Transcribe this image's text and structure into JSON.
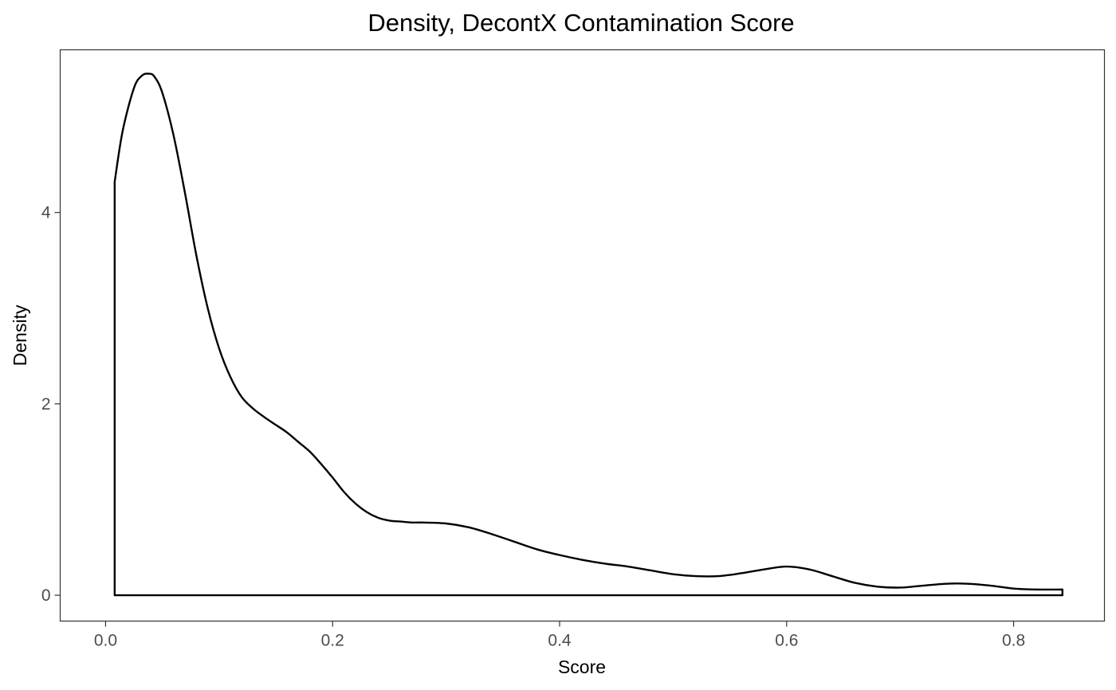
{
  "chart_data": {
    "type": "area",
    "title": "Density, DecontX Contamination Score",
    "xlabel": "Score",
    "ylabel": "Density",
    "xlim": [
      -0.04,
      0.88
    ],
    "ylim": [
      -0.27,
      5.7
    ],
    "x_ticks": [
      0.0,
      0.2,
      0.4,
      0.6,
      0.8
    ],
    "x_tick_labels": [
      "0.0",
      "0.2",
      "0.4",
      "0.6",
      "0.8"
    ],
    "y_ticks": [
      0,
      2,
      4
    ],
    "y_tick_labels": [
      "0",
      "2",
      "4"
    ],
    "grid": false,
    "series": [
      {
        "x": [
          0.008,
          0.015,
          0.025,
          0.032,
          0.038,
          0.043,
          0.05,
          0.06,
          0.07,
          0.08,
          0.09,
          0.1,
          0.11,
          0.12,
          0.13,
          0.14,
          0.15,
          0.16,
          0.17,
          0.18,
          0.19,
          0.2,
          0.21,
          0.22,
          0.23,
          0.24,
          0.25,
          0.26,
          0.27,
          0.28,
          0.3,
          0.32,
          0.34,
          0.36,
          0.38,
          0.4,
          0.42,
          0.44,
          0.46,
          0.48,
          0.5,
          0.52,
          0.54,
          0.56,
          0.58,
          0.6,
          0.62,
          0.64,
          0.66,
          0.68,
          0.7,
          0.72,
          0.74,
          0.76,
          0.78,
          0.8,
          0.82,
          0.843
        ],
        "y": [
          4.32,
          4.85,
          5.3,
          5.43,
          5.45,
          5.42,
          5.25,
          4.8,
          4.2,
          3.55,
          3.0,
          2.58,
          2.28,
          2.07,
          1.95,
          1.86,
          1.78,
          1.7,
          1.6,
          1.5,
          1.37,
          1.23,
          1.08,
          0.96,
          0.87,
          0.81,
          0.78,
          0.77,
          0.76,
          0.76,
          0.75,
          0.71,
          0.64,
          0.56,
          0.48,
          0.42,
          0.37,
          0.33,
          0.3,
          0.26,
          0.22,
          0.2,
          0.2,
          0.23,
          0.27,
          0.3,
          0.27,
          0.2,
          0.13,
          0.09,
          0.08,
          0.1,
          0.12,
          0.12,
          0.1,
          0.07,
          0.06,
          0.06
        ]
      }
    ]
  }
}
